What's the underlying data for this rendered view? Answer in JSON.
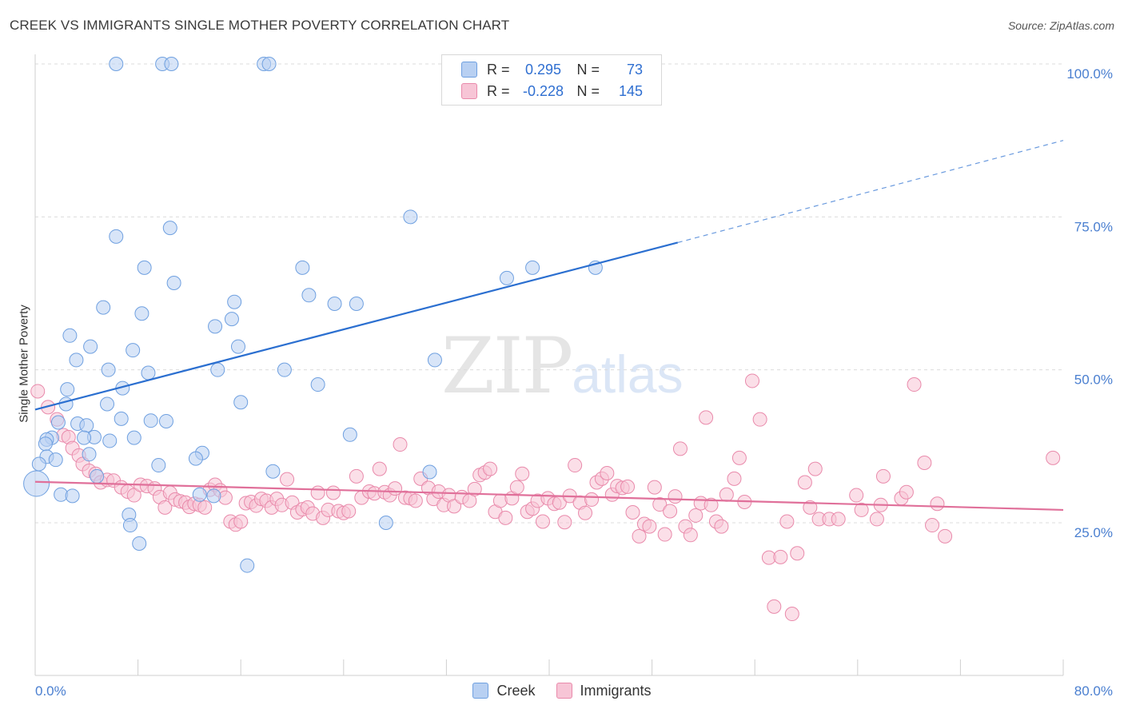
{
  "title": "CREEK VS IMMIGRANTS SINGLE MOTHER POVERTY CORRELATION CHART",
  "source": "Source: ZipAtlas.com",
  "watermark": {
    "zip": "ZIP",
    "atlas": "atlas"
  },
  "legend": {
    "r_label": "R =",
    "n_label": "N =",
    "series": [
      {
        "name": "Creek",
        "r": "0.295",
        "n": "73",
        "color": "#6fa0e0",
        "fill": "#b8d0f2"
      },
      {
        "name": "Immigrants",
        "r": "-0.228",
        "n": "145",
        "color": "#e98aab",
        "fill": "#f7c5d6"
      }
    ]
  },
  "chart_data": {
    "type": "scatter",
    "title": "CREEK VS IMMIGRANTS SINGLE MOTHER POVERTY CORRELATION CHART",
    "xlabel": "",
    "ylabel": "Single Mother Poverty",
    "xlim": [
      0,
      80
    ],
    "ylim": [
      0,
      104
    ],
    "x_tick_labels": [
      "0.0%",
      "80.0%"
    ],
    "y_ticks": [
      25,
      50,
      75,
      100
    ],
    "y_tick_labels": [
      "25.0%",
      "50.0%",
      "75.0%",
      "100.0%"
    ],
    "grid": "horizontal dashed",
    "legend_position": "top-center",
    "series": [
      {
        "name": "Creek",
        "color": "#6fa0e0",
        "trend": {
          "x": [
            0,
            50
          ],
          "y": [
            43.5,
            70.8
          ],
          "extrapolate_to": [
            80,
            87.5
          ]
        },
        "points": [
          [
            6.3,
            100
          ],
          [
            9.9,
            100
          ],
          [
            10.6,
            100
          ],
          [
            17.8,
            100
          ],
          [
            18.2,
            100
          ],
          [
            29.2,
            75
          ],
          [
            10.5,
            73.2
          ],
          [
            6.3,
            71.8
          ],
          [
            8.5,
            66.7
          ],
          [
            20.8,
            66.7
          ],
          [
            38.7,
            66.7
          ],
          [
            43.6,
            66.7
          ],
          [
            36.7,
            65
          ],
          [
            10.8,
            64.2
          ],
          [
            21.3,
            62.2
          ],
          [
            15.5,
            61.1
          ],
          [
            23.3,
            60.8
          ],
          [
            25,
            60.8
          ],
          [
            5.3,
            60.2
          ],
          [
            8.3,
            59.2
          ],
          [
            15.3,
            58.3
          ],
          [
            14,
            57.1
          ],
          [
            2.7,
            55.6
          ],
          [
            4.3,
            53.8
          ],
          [
            15.8,
            53.8
          ],
          [
            7.6,
            53.2
          ],
          [
            3.2,
            51.6
          ],
          [
            31.1,
            51.6
          ],
          [
            5.7,
            50
          ],
          [
            14.2,
            50
          ],
          [
            19.4,
            50
          ],
          [
            8.8,
            49.5
          ],
          [
            22,
            47.6
          ],
          [
            6.8,
            47
          ],
          [
            2.5,
            46.8
          ],
          [
            16,
            44.7
          ],
          [
            2.4,
            44.4
          ],
          [
            5.6,
            44.4
          ],
          [
            6.7,
            42
          ],
          [
            9,
            41.7
          ],
          [
            10.2,
            41.6
          ],
          [
            1.8,
            41.4
          ],
          [
            3.3,
            41.2
          ],
          [
            4,
            40.9
          ],
          [
            24.5,
            39.4
          ],
          [
            4.6,
            39
          ],
          [
            3.8,
            38.9
          ],
          [
            7.7,
            38.9
          ],
          [
            1.3,
            38.9
          ],
          [
            0.9,
            38.6
          ],
          [
            0.8,
            37.9
          ],
          [
            5.8,
            38.4
          ],
          [
            0.9,
            35.8
          ],
          [
            4.2,
            36.2
          ],
          [
            13,
            36.4
          ],
          [
            12.5,
            35.5
          ],
          [
            1.6,
            35.3
          ],
          [
            0.3,
            34.6
          ],
          [
            9.6,
            34.4
          ],
          [
            18.5,
            33.4
          ],
          [
            30.7,
            33.3
          ],
          [
            4.8,
            32.6
          ],
          [
            0.1,
            31.4
          ],
          [
            2,
            29.6
          ],
          [
            2.9,
            29.4
          ],
          [
            13.9,
            29.4
          ],
          [
            12.8,
            29.6
          ],
          [
            7.3,
            26.3
          ],
          [
            7.4,
            24.6
          ],
          [
            27.3,
            25
          ],
          [
            8.1,
            21.6
          ],
          [
            16.5,
            18
          ]
        ]
      },
      {
        "name": "Immigrants",
        "color": "#e98aab",
        "trend": {
          "x": [
            0,
            80
          ],
          "y": [
            31.7,
            27.1
          ]
        },
        "points": [
          [
            0.2,
            46.5
          ],
          [
            1,
            43.9
          ],
          [
            1.7,
            41.9
          ],
          [
            2.2,
            39.3
          ],
          [
            2.6,
            39
          ],
          [
            2.9,
            37.2
          ],
          [
            3.4,
            36
          ],
          [
            3.7,
            34.6
          ],
          [
            4.2,
            33.5
          ],
          [
            4.7,
            33
          ],
          [
            5.1,
            31.6
          ],
          [
            5.6,
            32
          ],
          [
            6.1,
            31.9
          ],
          [
            6.7,
            30.8
          ],
          [
            7.2,
            30.1
          ],
          [
            7.7,
            29.5
          ],
          [
            8.2,
            31.2
          ],
          [
            8.7,
            31
          ],
          [
            9.3,
            30.6
          ],
          [
            9.7,
            29.2
          ],
          [
            10.1,
            27.5
          ],
          [
            10.5,
            29.9
          ],
          [
            10.9,
            28.8
          ],
          [
            11.3,
            28.5
          ],
          [
            11.7,
            28.3
          ],
          [
            12,
            27.6
          ],
          [
            12.4,
            28.1
          ],
          [
            12.8,
            27.9
          ],
          [
            13.2,
            27.5
          ],
          [
            13.6,
            30.4
          ],
          [
            14,
            31.2
          ],
          [
            14.4,
            30.3
          ],
          [
            14.8,
            29.1
          ],
          [
            15.2,
            25.2
          ],
          [
            15.6,
            24.7
          ],
          [
            16,
            25.2
          ],
          [
            16.4,
            28.2
          ],
          [
            16.8,
            28.4
          ],
          [
            17.2,
            27.8
          ],
          [
            17.6,
            28.9
          ],
          [
            18,
            28.6
          ],
          [
            18.4,
            27.5
          ],
          [
            18.8,
            28.9
          ],
          [
            19.2,
            27.9
          ],
          [
            19.6,
            32.1
          ],
          [
            20,
            28.3
          ],
          [
            20.4,
            26.7
          ],
          [
            20.8,
            27.2
          ],
          [
            21.2,
            27.5
          ],
          [
            21.6,
            26.5
          ],
          [
            22,
            29.9
          ],
          [
            22.4,
            25.8
          ],
          [
            22.8,
            27.1
          ],
          [
            23.2,
            29.9
          ],
          [
            23.6,
            26.9
          ],
          [
            24,
            26.6
          ],
          [
            24.4,
            26.9
          ],
          [
            25,
            32.6
          ],
          [
            25.4,
            29.1
          ],
          [
            26,
            30.1
          ],
          [
            26.4,
            29.8
          ],
          [
            26.8,
            33.8
          ],
          [
            27.2,
            30
          ],
          [
            27.6,
            29.5
          ],
          [
            28,
            30.6
          ],
          [
            28.4,
            37.8
          ],
          [
            28.8,
            29.1
          ],
          [
            29.2,
            29
          ],
          [
            29.6,
            28.6
          ],
          [
            30,
            32.2
          ],
          [
            30.6,
            30.7
          ],
          [
            31,
            28.9
          ],
          [
            31.4,
            30.1
          ],
          [
            31.8,
            27.9
          ],
          [
            32.2,
            29.5
          ],
          [
            32.6,
            27.7
          ],
          [
            33.2,
            29.2
          ],
          [
            33.8,
            28.6
          ],
          [
            34.2,
            30.5
          ],
          [
            34.6,
            32.8
          ],
          [
            35,
            33.2
          ],
          [
            35.4,
            33.8
          ],
          [
            35.8,
            26.8
          ],
          [
            36.2,
            28.6
          ],
          [
            36.6,
            25.8
          ],
          [
            37.1,
            29
          ],
          [
            37.5,
            30.8
          ],
          [
            37.9,
            33
          ],
          [
            38.3,
            26.8
          ],
          [
            38.7,
            27.3
          ],
          [
            39.1,
            28.6
          ],
          [
            39.5,
            25.2
          ],
          [
            39.9,
            29
          ],
          [
            40.4,
            28.1
          ],
          [
            40.8,
            28.3
          ],
          [
            41.2,
            25.1
          ],
          [
            41.6,
            29.4
          ],
          [
            42,
            34.4
          ],
          [
            42.4,
            28.3
          ],
          [
            42.8,
            26.6
          ],
          [
            43.3,
            28.8
          ],
          [
            43.7,
            31.6
          ],
          [
            44.1,
            32.2
          ],
          [
            44.5,
            33.1
          ],
          [
            44.9,
            29.6
          ],
          [
            45.3,
            31
          ],
          [
            45.7,
            30.7
          ],
          [
            46.1,
            30.9
          ],
          [
            46.5,
            26.7
          ],
          [
            47,
            22.8
          ],
          [
            47.4,
            24.8
          ],
          [
            47.8,
            24.4
          ],
          [
            48.2,
            30.8
          ],
          [
            48.6,
            28
          ],
          [
            49,
            23.1
          ],
          [
            49.4,
            26.9
          ],
          [
            49.8,
            29.3
          ],
          [
            50.2,
            37.1
          ],
          [
            50.6,
            24.4
          ],
          [
            51,
            23
          ],
          [
            51.4,
            26.2
          ],
          [
            51.8,
            28.2
          ],
          [
            52.2,
            42.2
          ],
          [
            52.6,
            27.9
          ],
          [
            53,
            25.2
          ],
          [
            53.4,
            24.4
          ],
          [
            53.8,
            29.6
          ],
          [
            54.4,
            32.2
          ],
          [
            54.8,
            35.6
          ],
          [
            55.2,
            28.4
          ],
          [
            55.8,
            48.2
          ],
          [
            56.4,
            41.9
          ],
          [
            57.1,
            19.3
          ],
          [
            57.5,
            11.3
          ],
          [
            58,
            19.4
          ],
          [
            58.5,
            25.2
          ],
          [
            58.9,
            10.1
          ],
          [
            59.3,
            20
          ],
          [
            59.9,
            31.6
          ],
          [
            60.3,
            27.5
          ],
          [
            60.7,
            33.8
          ],
          [
            61,
            25.6
          ],
          [
            61.8,
            25.6
          ],
          [
            62.5,
            25.6
          ],
          [
            63.9,
            29.5
          ],
          [
            64.3,
            27.1
          ],
          [
            65.5,
            25.6
          ],
          [
            65.8,
            27.9
          ],
          [
            66,
            32.6
          ],
          [
            67.4,
            29
          ],
          [
            67.8,
            30
          ],
          [
            68.4,
            47.6
          ],
          [
            69.2,
            34.8
          ],
          [
            69.8,
            24.6
          ],
          [
            70.2,
            28.1
          ],
          [
            70.8,
            22.8
          ],
          [
            79.2,
            35.6
          ]
        ]
      }
    ]
  }
}
